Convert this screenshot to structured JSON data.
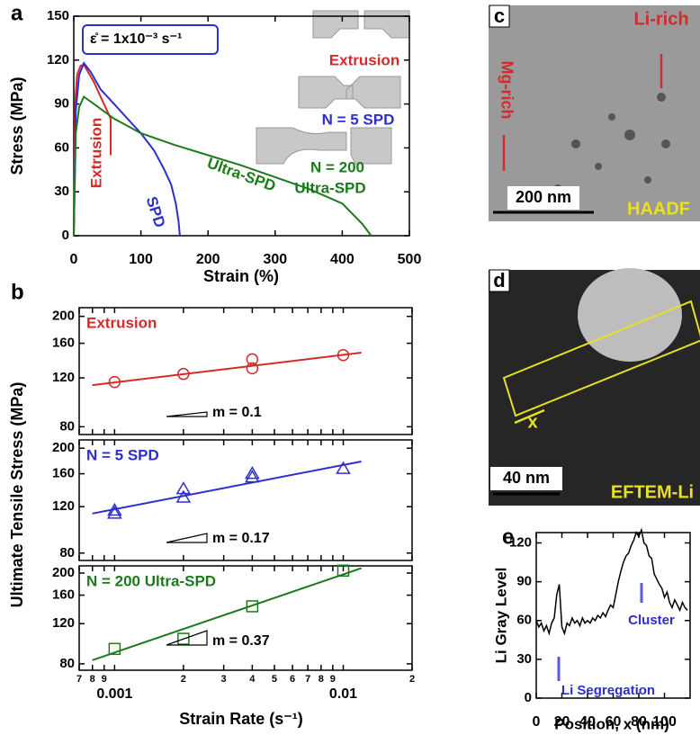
{
  "chart_data": [
    {
      "type": "line",
      "panel_label": "a",
      "xlabel": "Strain (%)",
      "ylabel": "Stress (MPa)",
      "xlim": [
        0,
        500
      ],
      "xticks": [
        0,
        100,
        200,
        300,
        400,
        500
      ],
      "ylim": [
        0,
        150
      ],
      "yticks": [
        0,
        30,
        60,
        90,
        120,
        150
      ],
      "series": [
        {
          "name": "Extrusion",
          "color": "#d42a2a",
          "x": [
            0,
            2,
            5,
            10,
            15,
            20,
            30,
            40,
            50,
            55,
            55
          ],
          "values": [
            0,
            90,
            110,
            116,
            117,
            113,
            105,
            95,
            85,
            80,
            55
          ]
        },
        {
          "name": "SPD",
          "color": "#2e2ed0",
          "x": [
            0,
            3,
            8,
            15,
            25,
            40,
            60,
            80,
            100,
            120,
            135,
            145,
            152,
            156,
            158
          ],
          "values": [
            0,
            85,
            110,
            118,
            112,
            100,
            90,
            80,
            70,
            58,
            45,
            35,
            22,
            10,
            0
          ]
        },
        {
          "name": "Ultra-SPD",
          "color": "#1c7a1c",
          "x": [
            0,
            3,
            8,
            15,
            30,
            60,
            100,
            150,
            200,
            250,
            300,
            350,
            400,
            430,
            443
          ],
          "values": [
            0,
            70,
            88,
            95,
            90,
            80,
            70,
            62,
            55,
            48,
            40,
            32,
            22,
            8,
            0
          ]
        }
      ],
      "annotations": [
        {
          "text": "ε̊ = 1x10⁻³ s⁻¹",
          "color": "#000000"
        },
        {
          "text": "Extrusion",
          "color": "#d42a2a"
        },
        {
          "text": "N = 5 SPD",
          "color": "#2e2ed0"
        },
        {
          "text": "N = 200",
          "color": "#1c7a1c"
        },
        {
          "text": "Ultra-SPD",
          "color": "#1c7a1c"
        },
        {
          "text": "Extrusion",
          "color": "#d42a2a"
        },
        {
          "text": "SPD",
          "color": "#2e2ed0"
        },
        {
          "text": "Ultra-SPD",
          "color": "#1c7a1c"
        }
      ]
    },
    {
      "type": "scatter",
      "panel_label": "b",
      "ylabel": "Ultimate Tensile Stress (MPa)",
      "log_x": true,
      "log_y": true,
      "xlim": [
        0.0007,
        0.02
      ],
      "ylim": [
        75,
        215
      ],
      "yticks": [
        80,
        120,
        160,
        200
      ],
      "slope": "m = 0.1",
      "series": [
        {
          "name": "Extrusion",
          "color": "#d42a2a",
          "marker": "circle",
          "x": [
            0.001,
            0.002,
            0.004,
            0.004,
            0.01
          ],
          "values": [
            116,
            124,
            140,
            130,
            145
          ]
        },
        {
          "color": "#d42a2a",
          "style": "line",
          "x": [
            0.0008,
            0.012
          ],
          "values": [
            113,
            148
          ]
        }
      ]
    },
    {
      "type": "scatter",
      "log_x": true,
      "log_y": true,
      "xlim": [
        0.0007,
        0.02
      ],
      "ylim": [
        75,
        215
      ],
      "yticks": [
        80,
        120,
        160,
        200
      ],
      "slope": "m = 0.17",
      "series": [
        {
          "name": "N = 5 SPD",
          "color": "#2e2ed0",
          "marker": "triangle",
          "x": [
            0.001,
            0.001,
            0.002,
            0.002,
            0.004,
            0.004,
            0.01
          ],
          "values": [
            116,
            113,
            140,
            130,
            160,
            155,
            167
          ]
        },
        {
          "color": "#2e2ed0",
          "style": "line",
          "x": [
            0.0008,
            0.012
          ],
          "values": [
            113,
            178
          ]
        }
      ]
    },
    {
      "type": "scatter",
      "xlabel": "Strain Rate (s⁻¹)",
      "log_x": true,
      "log_y": true,
      "xlim": [
        0.0007,
        0.02
      ],
      "ylim": [
        75,
        215
      ],
      "yticks": [
        80,
        120,
        160,
        200
      ],
      "slope": "m = 0.37",
      "xticks": [
        {
          "value": 0.0007,
          "label": "7"
        },
        {
          "value": 0.0008,
          "label": "8"
        },
        {
          "value": 0.0009,
          "label": "9"
        },
        0.001,
        {
          "value": 0.002,
          "label": "2"
        },
        {
          "value": 0.003,
          "label": "3"
        },
        {
          "value": 0.004,
          "label": "4"
        },
        {
          "value": 0.005,
          "label": "5"
        },
        {
          "value": 0.006,
          "label": "6"
        },
        {
          "value": 0.007,
          "label": "7"
        },
        {
          "value": 0.008,
          "label": "8"
        },
        {
          "value": 0.009,
          "label": "9"
        },
        0.01,
        {
          "value": 0.02,
          "label": "2"
        }
      ],
      "series": [
        {
          "name": "N = 200 Ultra-SPD",
          "color": "#1c7a1c",
          "marker": "square",
          "x": [
            0.001,
            0.002,
            0.004,
            0.01
          ],
          "values": [
            93,
            103,
            143,
            205
          ]
        },
        {
          "color": "#1c7a1c",
          "style": "line",
          "x": [
            0.0008,
            0.012
          ],
          "values": [
            83,
            210
          ]
        }
      ]
    },
    {
      "type": "line",
      "panel_label": "e",
      "xlabel": "Position, x (nm)",
      "ylabel": "Li Gray Level",
      "xlim": [
        0,
        120
      ],
      "xticks": [
        0,
        20,
        40,
        60,
        80,
        100
      ],
      "ylim": [
        0,
        128
      ],
      "yticks": [
        0,
        30,
        60,
        90,
        120
      ],
      "series": [
        {
          "color": "#000000",
          "x": [
            0,
            2,
            4,
            6,
            8,
            10,
            12,
            14,
            16,
            18,
            20,
            22,
            24,
            26,
            28,
            30,
            32,
            34,
            36,
            38,
            40,
            42,
            44,
            46,
            48,
            50,
            52,
            54,
            56,
            58,
            60,
            62,
            64,
            66,
            68,
            70,
            72,
            74,
            76,
            78,
            80,
            82,
            84,
            86,
            88,
            90,
            92,
            94,
            96,
            98,
            100,
            102,
            104,
            106,
            108,
            110,
            112,
            114,
            116,
            118
          ],
          "values": [
            60,
            55,
            58,
            52,
            56,
            50,
            58,
            62,
            80,
            88,
            55,
            50,
            58,
            56,
            62,
            58,
            60,
            56,
            62,
            58,
            60,
            58,
            62,
            60,
            64,
            62,
            66,
            63,
            68,
            72,
            70,
            80,
            90,
            98,
            105,
            110,
            112,
            118,
            122,
            128,
            125,
            130,
            120,
            118,
            110,
            108,
            96,
            92,
            88,
            85,
            78,
            82,
            74,
            70,
            76,
            72,
            68,
            74,
            70,
            68
          ]
        }
      ],
      "annotations": [
        {
          "text": "Li Segregation",
          "color": "#2e2ed0"
        },
        {
          "text": "Cluster",
          "color": "#2e2ed0"
        }
      ]
    }
  ],
  "images": [
    {
      "panel_label": "c",
      "labels": [
        "Mg-rich",
        "Li-rich",
        "200 nm",
        "HAADF"
      ]
    },
    {
      "panel_label": "d",
      "labels": [
        "x",
        "40 nm",
        "EFTEM-Li"
      ]
    }
  ]
}
